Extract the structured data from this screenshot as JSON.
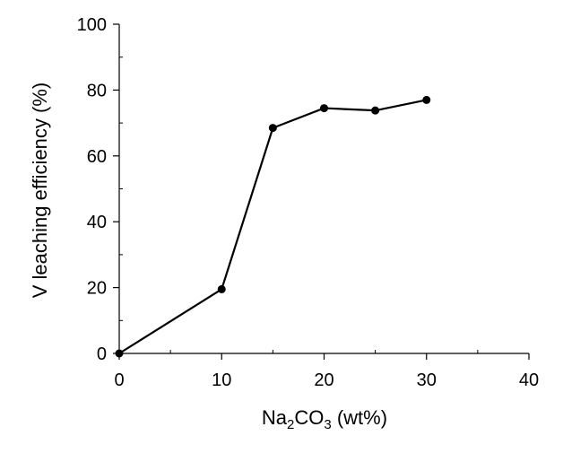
{
  "chart_data": {
    "type": "line",
    "xlabel": {
      "base": "Na",
      "sub1": "2",
      "mid": "CO",
      "sub2": "3",
      "rest": " (wt%)"
    },
    "ylabel": "V leaching efficiency (%)",
    "xlim": [
      0,
      40
    ],
    "ylim": [
      0,
      100
    ],
    "xticks": [
      0,
      10,
      20,
      30,
      40
    ],
    "yticks": [
      0,
      20,
      40,
      60,
      80,
      100
    ],
    "grid": false,
    "series": [
      {
        "x": [
          0,
          10,
          15,
          20,
          25,
          30
        ],
        "y": [
          0,
          19.5,
          68.5,
          74.5,
          73.8,
          77
        ]
      }
    ],
    "colors": {
      "line": "#000000",
      "marker": "#000000",
      "axis": "#000000"
    }
  }
}
